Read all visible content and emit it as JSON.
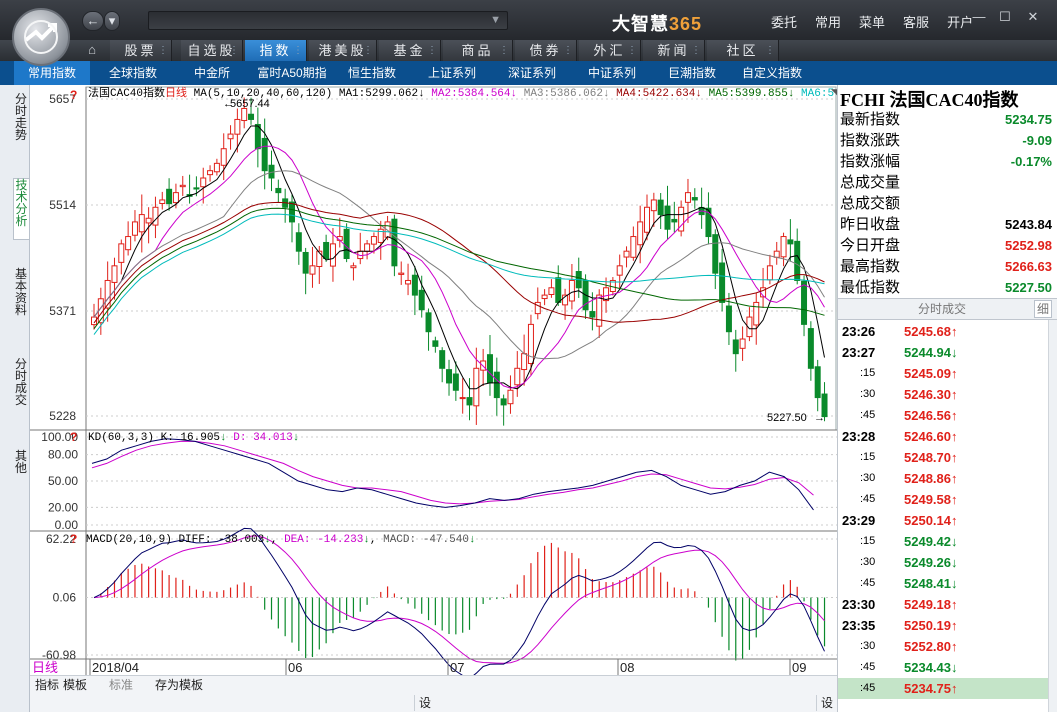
{
  "app": {
    "brand_main": "大智慧",
    "brand_num": "365",
    "top_menu": [
      "委托",
      "常用",
      "菜单",
      "客服",
      "开户"
    ]
  },
  "nav_tabs": [
    {
      "label": "股票",
      "active": false
    },
    {
      "label": "自选股",
      "active": false
    },
    {
      "label": "指数",
      "active": true
    },
    {
      "label": "港美股",
      "active": false
    },
    {
      "label": "基金",
      "active": false
    },
    {
      "label": "商品",
      "active": false
    },
    {
      "label": "债券",
      "active": false
    },
    {
      "label": "外汇",
      "active": false
    },
    {
      "label": "新闻",
      "active": false
    },
    {
      "label": "社区",
      "active": false
    }
  ],
  "sub_tabs": [
    {
      "label": "常用指数",
      "active": true
    },
    {
      "label": "全球指数"
    },
    {
      "label": "中金所"
    },
    {
      "label": "富时A50期指"
    },
    {
      "label": "恒生指数"
    },
    {
      "label": "上证系列"
    },
    {
      "label": "深证系列"
    },
    {
      "label": "中证系列"
    },
    {
      "label": "巨潮指数"
    },
    {
      "label": "自定义指数"
    }
  ],
  "side_tabs": [
    "分时走势",
    "技术分析",
    "基本资料",
    "分时成交",
    "其他"
  ],
  "chart_header": {
    "name": "法国CAC40指数",
    "period": "日线",
    "ma_def": "MA(5,10,20,40,60,120)",
    "ma_items": [
      {
        "label": "MA1:",
        "value": "5299.062",
        "arrow": "↓",
        "color": "#000000"
      },
      {
        "label": "MA2:",
        "value": "5384.564",
        "arrow": "↓",
        "color": "#cc00cc"
      },
      {
        "label": "MA3:",
        "value": "5386.062",
        "arrow": "↓",
        "color": "#808080"
      },
      {
        "label": "MA4:",
        "value": "5422.634",
        "arrow": "↓",
        "color": "#990000"
      },
      {
        "label": "MA5:",
        "value": "5399.855",
        "arrow": "↓",
        "color": "#006600"
      },
      {
        "label": "MA6:",
        "value": "5",
        "arrow": "",
        "color": "#00bbbb"
      }
    ]
  },
  "price_axis": [
    "5657",
    "5514",
    "5371",
    "5228"
  ],
  "high_label": "5657.44",
  "low_label": "5227.50",
  "kd_header": {
    "name": "KD(60,3,3)",
    "k": "K: 16.905",
    "k_arrow": "↓",
    "d": "D: 34.013",
    "d_arrow": "↓"
  },
  "kd_axis": [
    "100.00",
    "80.00",
    "50.00",
    "20.00",
    "0.00"
  ],
  "macd_header": {
    "name": "MACD(20,10,9)",
    "diff": "DIFF: -38.003",
    "diff_arrow": "↓",
    "dea": "DEA: -14.233",
    "dea_arrow": "↓",
    "macd": "MACD: -47.540",
    "macd_arrow": "↓"
  },
  "macd_axis": [
    "62.22",
    "0.06",
    "-60.98"
  ],
  "date_axis": [
    {
      "label": "2018/04"
    },
    {
      "label": "06"
    },
    {
      "label": "07"
    },
    {
      "label": "08"
    },
    {
      "label": "09"
    }
  ],
  "period_label": "日线",
  "footer": {
    "tabs": [
      "指标",
      "模板",
      "标准",
      "存为模板"
    ],
    "bottom_btn": "设"
  },
  "quote": {
    "title": "FCHI 法国CAC40指数",
    "rows": [
      {
        "label": "最新指数",
        "value": "5234.75",
        "color": "dn"
      },
      {
        "label": "指数涨跌",
        "value": "-9.09",
        "color": "dn"
      },
      {
        "label": "指数涨幅",
        "value": "-0.17%",
        "color": "dn"
      },
      {
        "label": "总成交量",
        "value": "",
        "color": "blk"
      },
      {
        "label": "总成交额",
        "value": "",
        "color": "blk"
      },
      {
        "label": "昨日收盘",
        "value": "5243.84",
        "color": "blk"
      },
      {
        "label": "今日开盘",
        "value": "5252.98",
        "color": "up"
      },
      {
        "label": "最高指数",
        "value": "5266.63",
        "color": "up"
      },
      {
        "label": "最低指数",
        "value": "5227.50",
        "color": "dn"
      }
    ]
  },
  "ticks_header": {
    "title": "分时成交",
    "detail_btn": "细"
  },
  "ticks": [
    {
      "time": "23:26",
      "price": "5245.68",
      "dir": "up",
      "sub": false
    },
    {
      "time": "23:27",
      "price": "5244.94",
      "dir": "dn",
      "sub": false
    },
    {
      "time": ":15",
      "price": "5245.09",
      "dir": "up",
      "sub": true
    },
    {
      "time": ":30",
      "price": "5246.30",
      "dir": "up",
      "sub": true
    },
    {
      "time": ":45",
      "price": "5246.56",
      "dir": "up",
      "sub": true
    },
    {
      "time": "23:28",
      "price": "5246.60",
      "dir": "up",
      "sub": false
    },
    {
      "time": ":15",
      "price": "5248.70",
      "dir": "up",
      "sub": true
    },
    {
      "time": ":30",
      "price": "5248.86",
      "dir": "up",
      "sub": true
    },
    {
      "time": ":45",
      "price": "5249.58",
      "dir": "up",
      "sub": true
    },
    {
      "time": "23:29",
      "price": "5250.14",
      "dir": "up",
      "sub": false
    },
    {
      "time": ":15",
      "price": "5249.42",
      "dir": "dn",
      "sub": true
    },
    {
      "time": ":30",
      "price": "5249.26",
      "dir": "dn",
      "sub": true
    },
    {
      "time": ":45",
      "price": "5248.41",
      "dir": "dn",
      "sub": true
    },
    {
      "time": "23:30",
      "price": "5249.18",
      "dir": "up",
      "sub": false
    },
    {
      "time": "23:35",
      "price": "5250.19",
      "dir": "up",
      "sub": false
    },
    {
      "time": ":30",
      "price": "5252.80",
      "dir": "up",
      "sub": true
    },
    {
      "time": ":45",
      "price": "5234.43",
      "dir": "dn",
      "sub": true
    },
    {
      "time": ":45",
      "price": "5234.75",
      "dir": "up",
      "sub": true,
      "selected": true
    }
  ],
  "chart_data": {
    "type": "line",
    "series_note": "daily candlestick of CAC40 Apr-Sep 2018 with KD and MACD sub-charts",
    "price_range": [
      5228,
      5657
    ],
    "closes": [
      5370,
      5395,
      5420,
      5440,
      5470,
      5480,
      5500,
      5510,
      5505,
      5520,
      5530,
      5525,
      5540,
      5550,
      5535,
      5545,
      5560,
      5570,
      5580,
      5600,
      5620,
      5640,
      5655,
      5640,
      5600,
      5570,
      5560,
      5540,
      5520,
      5500,
      5460,
      5430,
      5440,
      5460,
      5450,
      5470,
      5480,
      5450,
      5440,
      5460,
      5470,
      5480,
      5490,
      5500,
      5440,
      5430,
      5420,
      5400,
      5380,
      5350,
      5330,
      5300,
      5280,
      5270,
      5260,
      5250,
      5300,
      5310,
      5280,
      5260,
      5250,
      5270,
      5300,
      5320,
      5360,
      5390,
      5400,
      5410,
      5390,
      5400,
      5420,
      5410,
      5380,
      5370,
      5400,
      5410,
      5420,
      5440,
      5460,
      5480,
      5500,
      5520,
      5530,
      5510,
      5490,
      5500,
      5520,
      5540,
      5530,
      5510,
      5480,
      5430,
      5390,
      5350,
      5320,
      5340,
      5370,
      5390,
      5410,
      5440,
      5460,
      5480,
      5470,
      5420,
      5360,
      5300,
      5260,
      5234
    ],
    "k_values": [
      70,
      75,
      85,
      90,
      95,
      98,
      97,
      95,
      90,
      85,
      80,
      75,
      70,
      60,
      50,
      45,
      40,
      38,
      42,
      40,
      35,
      30,
      25,
      22,
      20,
      22,
      25,
      30,
      28,
      30,
      35,
      38,
      40,
      42,
      45,
      50,
      55,
      60,
      62,
      55,
      45,
      40,
      35,
      38,
      45,
      50,
      60,
      55,
      40,
      17
    ],
    "d_values": [
      65,
      70,
      78,
      85,
      90,
      93,
      95,
      95,
      93,
      90,
      85,
      80,
      75,
      70,
      62,
      55,
      50,
      45,
      42,
      42,
      40,
      38,
      33,
      28,
      25,
      24,
      25,
      27,
      28,
      29,
      32,
      35,
      37,
      40,
      42,
      46,
      50,
      55,
      58,
      57,
      52,
      47,
      42,
      41,
      43,
      46,
      52,
      54,
      48,
      34
    ],
    "ylim_kd": [
      0,
      100
    ],
    "ylim_macd": [
      -60.98,
      62.22
    ]
  }
}
